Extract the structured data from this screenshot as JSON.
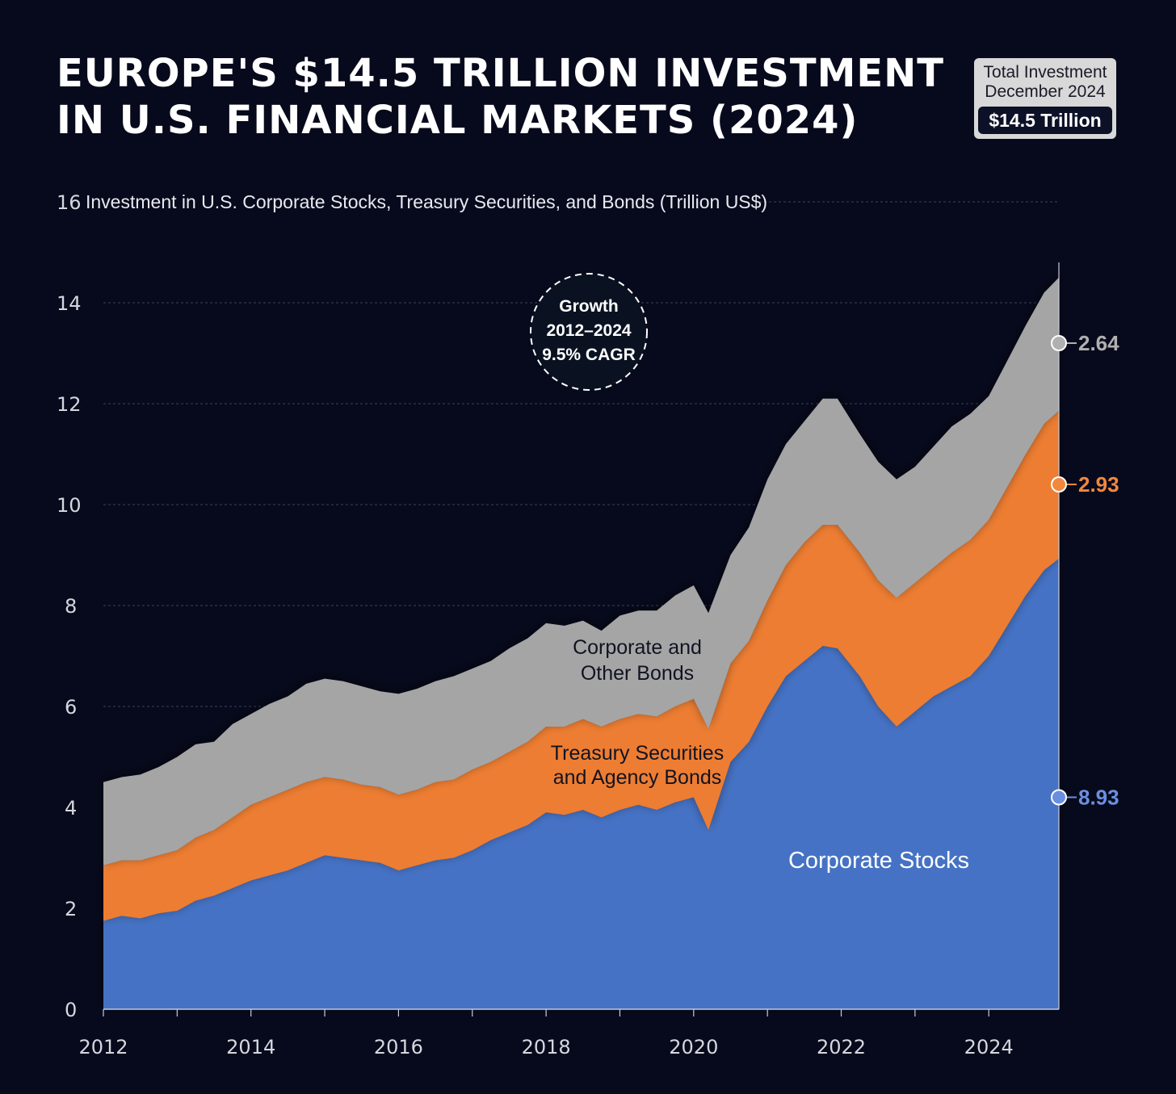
{
  "title_line1": "EUROPE'S $14.5 TRILLION INVESTMENT",
  "title_line2": "IN U.S. FINANCIAL MARKETS (2024)",
  "badge": {
    "line1": "Total Investment",
    "line2": "December 2024",
    "value": "$14.5 Trillion"
  },
  "callout": {
    "line1": "Growth",
    "line2": "2012–2024",
    "line3": "9.5% CAGR"
  },
  "labels": {
    "bonds_line1": "Corporate and",
    "bonds_line2": "Other Bonds",
    "treasury_line1": "Treasury Securities",
    "treasury_line2": "and Agency Bonds",
    "stocks": "Corporate Stocks"
  },
  "colors": {
    "background": "#070a1c",
    "stocks": "#4472c4",
    "treasury": "#ed7d31",
    "bonds": "#a5a5a5",
    "stocks_label": "#6b8fe0",
    "treasury_label": "#f0883e",
    "bonds_label": "#b0b0b0"
  },
  "chart_data": {
    "type": "area",
    "stacked": true,
    "ylabel": "Investment in U.S. Corporate Stocks, Treasury Securities, and Bonds (Trillion US$)",
    "ylim": [
      0,
      16
    ],
    "xlim": [
      2012,
      2024.95
    ],
    "yticks": [
      0,
      2,
      4,
      6,
      8,
      10,
      12,
      14,
      16
    ],
    "xticks": [
      2012,
      2014,
      2016,
      2018,
      2020,
      2022,
      2024
    ],
    "grid": true,
    "x": [
      2012,
      2012.25,
      2012.5,
      2012.75,
      2013,
      2013.25,
      2013.5,
      2013.75,
      2014,
      2014.25,
      2014.5,
      2014.75,
      2015,
      2015.25,
      2015.5,
      2015.75,
      2016,
      2016.25,
      2016.5,
      2016.75,
      2017,
      2017.25,
      2017.5,
      2017.75,
      2018,
      2018.25,
      2018.5,
      2018.75,
      2019,
      2019.25,
      2019.5,
      2019.75,
      2020,
      2020.2,
      2020.5,
      2020.75,
      2021,
      2021.25,
      2021.5,
      2021.75,
      2021.95,
      2022.25,
      2022.5,
      2022.75,
      2023,
      2023.25,
      2023.5,
      2023.75,
      2024,
      2024.25,
      2024.5,
      2024.75,
      2024.95
    ],
    "series": [
      {
        "name": "Corporate Stocks",
        "values": [
          1.75,
          1.85,
          1.8,
          1.9,
          1.95,
          2.15,
          2.25,
          2.4,
          2.55,
          2.65,
          2.75,
          2.9,
          3.05,
          3.0,
          2.95,
          2.9,
          2.75,
          2.85,
          2.95,
          3.0,
          3.15,
          3.35,
          3.5,
          3.65,
          3.9,
          3.85,
          3.95,
          3.8,
          3.95,
          4.05,
          3.95,
          4.1,
          4.2,
          3.55,
          4.9,
          5.3,
          6.0,
          6.6,
          6.9,
          7.2,
          7.15,
          6.6,
          6.0,
          5.6,
          5.9,
          6.2,
          6.4,
          6.6,
          7.0,
          7.6,
          8.2,
          8.7,
          8.93
        ]
      },
      {
        "name": "Treasury Securities and Agency Bonds",
        "values": [
          1.1,
          1.1,
          1.15,
          1.15,
          1.2,
          1.25,
          1.3,
          1.4,
          1.5,
          1.55,
          1.6,
          1.6,
          1.55,
          1.55,
          1.5,
          1.5,
          1.5,
          1.5,
          1.55,
          1.55,
          1.6,
          1.55,
          1.6,
          1.65,
          1.7,
          1.75,
          1.8,
          1.8,
          1.8,
          1.8,
          1.85,
          1.9,
          1.95,
          2.0,
          1.95,
          2.0,
          2.1,
          2.2,
          2.35,
          2.4,
          2.45,
          2.45,
          2.5,
          2.55,
          2.55,
          2.55,
          2.65,
          2.7,
          2.7,
          2.75,
          2.8,
          2.9,
          2.93
        ]
      },
      {
        "name": "Corporate and Other Bonds",
        "values": [
          1.65,
          1.65,
          1.7,
          1.75,
          1.85,
          1.85,
          1.75,
          1.85,
          1.8,
          1.85,
          1.85,
          1.95,
          1.95,
          1.95,
          1.95,
          1.9,
          2.0,
          2.0,
          2.0,
          2.05,
          2.0,
          2.0,
          2.05,
          2.05,
          2.05,
          2.0,
          1.95,
          1.9,
          2.05,
          2.05,
          2.1,
          2.2,
          2.25,
          2.3,
          2.15,
          2.25,
          2.4,
          2.4,
          2.4,
          2.5,
          2.5,
          2.35,
          2.35,
          2.35,
          2.3,
          2.4,
          2.5,
          2.5,
          2.45,
          2.5,
          2.55,
          2.6,
          2.64
        ]
      }
    ],
    "end_labels": [
      "8.93",
      "2.93",
      "2.64"
    ]
  }
}
